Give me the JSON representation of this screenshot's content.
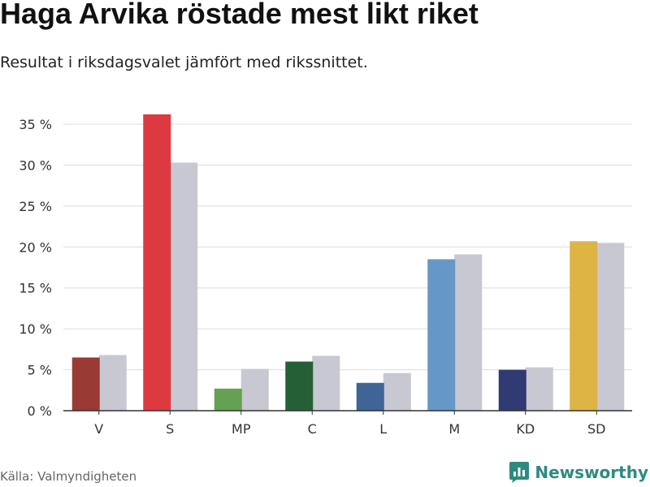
{
  "title": "Haga Arvika röstade mest likt riket",
  "subtitle": "Resultat i riksdagsvalet jämfört med rikssnittet.",
  "source": "Källa: Valmyndigheten",
  "brand": {
    "name": "Newsworthy",
    "icon": "newsworthy-logo-icon",
    "color": "#2e8a7f"
  },
  "chart_data": {
    "type": "bar",
    "categories": [
      "V",
      "S",
      "MP",
      "C",
      "L",
      "M",
      "KD",
      "SD"
    ],
    "series": [
      {
        "values": [
          6.5,
          36.2,
          2.7,
          6.0,
          3.4,
          18.5,
          5.0,
          20.7
        ],
        "colors": [
          "#9a3a35",
          "#dc3a40",
          "#64a150",
          "#255f36",
          "#3f6495",
          "#6598c7",
          "#2f3b72",
          "#deb444"
        ]
      },
      {
        "values": [
          6.8,
          30.3,
          5.1,
          6.7,
          4.6,
          19.1,
          5.3,
          20.5
        ],
        "color": "#c8c8d2"
      }
    ],
    "ylim": [
      0,
      35
    ],
    "yticks": [
      0,
      5,
      10,
      15,
      20,
      25,
      30,
      35
    ],
    "ytick_labels": [
      "0 %",
      "5 %",
      "10 %",
      "15 %",
      "20 %",
      "25 %",
      "30 %",
      "35 %"
    ],
    "grid": true,
    "gridline_color": "#dddddd",
    "axis_color": "#333333",
    "legend": "none"
  }
}
